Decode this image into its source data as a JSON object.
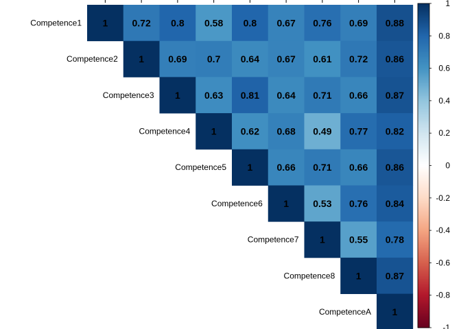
{
  "chart_data": {
    "type": "heatmap",
    "variables": [
      "Competence1",
      "Competence2",
      "Competence3",
      "Competence4",
      "Competence5",
      "Competence6",
      "Competence7",
      "Competence8",
      "CompetenceA"
    ],
    "matrix_upper": [
      [
        1,
        0.72,
        0.8,
        0.58,
        0.8,
        0.67,
        0.76,
        0.69,
        0.88
      ],
      [
        1,
        0.69,
        0.7,
        0.64,
        0.67,
        0.61,
        0.72,
        0.86
      ],
      [
        1,
        0.63,
        0.81,
        0.64,
        0.71,
        0.66,
        0.87
      ],
      [
        1,
        0.62,
        0.68,
        0.49,
        0.77,
        0.82
      ],
      [
        1,
        0.66,
        0.71,
        0.66,
        0.86
      ],
      [
        1,
        0.53,
        0.76,
        0.84
      ],
      [
        1,
        0.55,
        0.78
      ],
      [
        1,
        0.87
      ],
      [
        1
      ]
    ],
    "color_scale": {
      "min": -1,
      "max": 1,
      "low": "#67001f",
      "mid": "#ffffff",
      "high": "#053061"
    },
    "legend_ticks": [
      "1",
      "0.8",
      "0.6",
      "0.4",
      "0.2",
      "0",
      "-0.2",
      "-0.4",
      "-0.6",
      "-0.8",
      "-1"
    ],
    "legend_position": "right",
    "grid": false
  }
}
